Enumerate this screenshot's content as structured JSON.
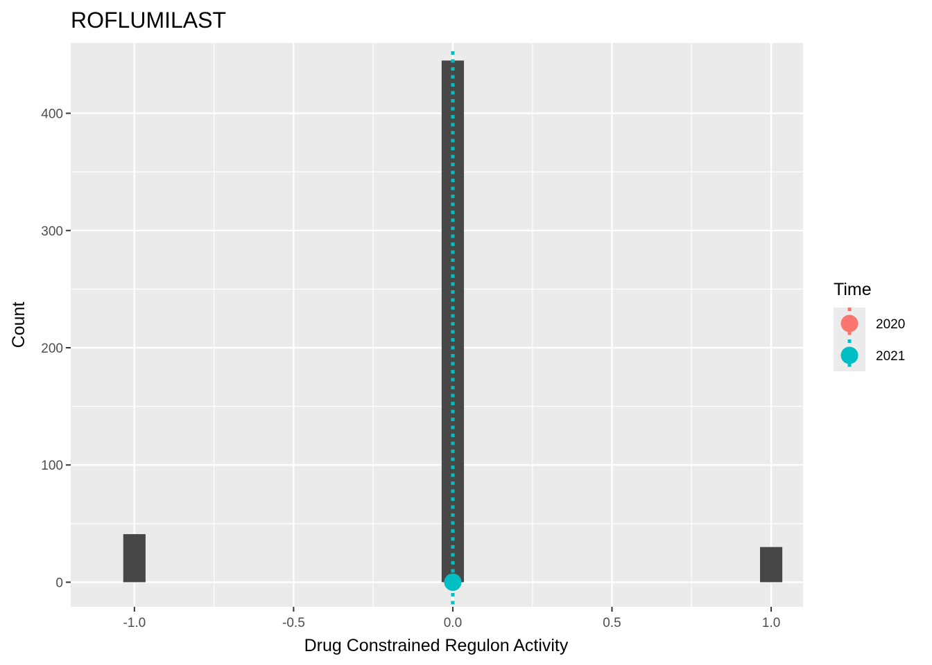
{
  "chart_data": {
    "type": "bar",
    "title": "ROFLUMILAST",
    "xlabel": "Drug Constrained Regulon Activity",
    "ylabel": "Count",
    "xlim": [
      -1.2,
      1.1
    ],
    "ylim": [
      -21,
      460
    ],
    "x_ticks": [
      -1.0,
      -0.5,
      0.0,
      0.5,
      1.0
    ],
    "x_tick_labels": [
      "-1.0",
      "-0.5",
      "0.0",
      "0.5",
      "1.0"
    ],
    "y_ticks": [
      0,
      100,
      200,
      300,
      400
    ],
    "y_tick_labels": [
      "0",
      "100",
      "200",
      "300",
      "400"
    ],
    "grid": true,
    "bin_width": 0.07,
    "bars": [
      {
        "x": -1.0,
        "count": 41
      },
      {
        "x": 0.0,
        "count": 445
      },
      {
        "x": 1.0,
        "count": 30
      }
    ],
    "bar_color": "#474747",
    "legend": {
      "title": "Time",
      "placement": "right",
      "entries": [
        {
          "label": "2020",
          "color": "#F8766D"
        },
        {
          "label": "2021",
          "color": "#00BFC4"
        }
      ]
    },
    "vlines": [
      {
        "series": "2020",
        "x": 0.0,
        "color": "#F8766D",
        "linetype": "dotted"
      },
      {
        "series": "2021",
        "x": 0.0,
        "color": "#00BFC4",
        "linetype": "dotted"
      }
    ],
    "points": [
      {
        "series": "2020",
        "x": 0.0,
        "y": 0,
        "color": "#F8766D"
      },
      {
        "series": "2021",
        "x": 0.0,
        "y": 0,
        "color": "#00BFC4"
      }
    ]
  }
}
